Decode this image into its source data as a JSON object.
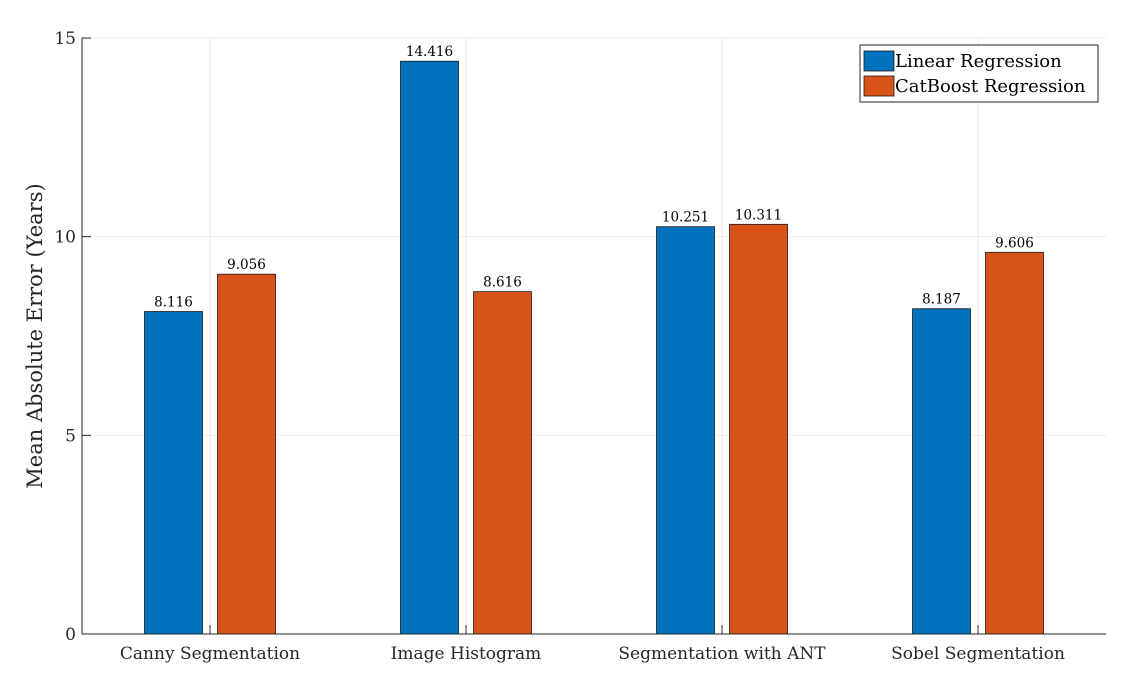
{
  "chart_data": {
    "type": "bar",
    "title": "",
    "xlabel": "",
    "ylabel": "Mean Absolute Error (Years)",
    "ylim": [
      0,
      15
    ],
    "yticks": [
      0,
      5,
      10,
      15
    ],
    "categories": [
      "Canny Segmentation",
      "Image Histogram",
      "Segmentation with ANT",
      "Sobel Segmentation"
    ],
    "series": [
      {
        "name": "Linear Regression",
        "color": "#0072BD",
        "values": [
          8.116,
          14.416,
          10.251,
          8.187
        ],
        "labels": [
          "8.116",
          "14.416",
          "10.251",
          "8.187"
        ]
      },
      {
        "name": "CatBoost Regression",
        "color": "#D95319",
        "values": [
          9.056,
          8.616,
          10.311,
          9.606
        ],
        "labels": [
          "9.056",
          "8.616",
          "10.311",
          "9.606"
        ]
      }
    ],
    "grid": true,
    "legend_position": "top-right"
  }
}
